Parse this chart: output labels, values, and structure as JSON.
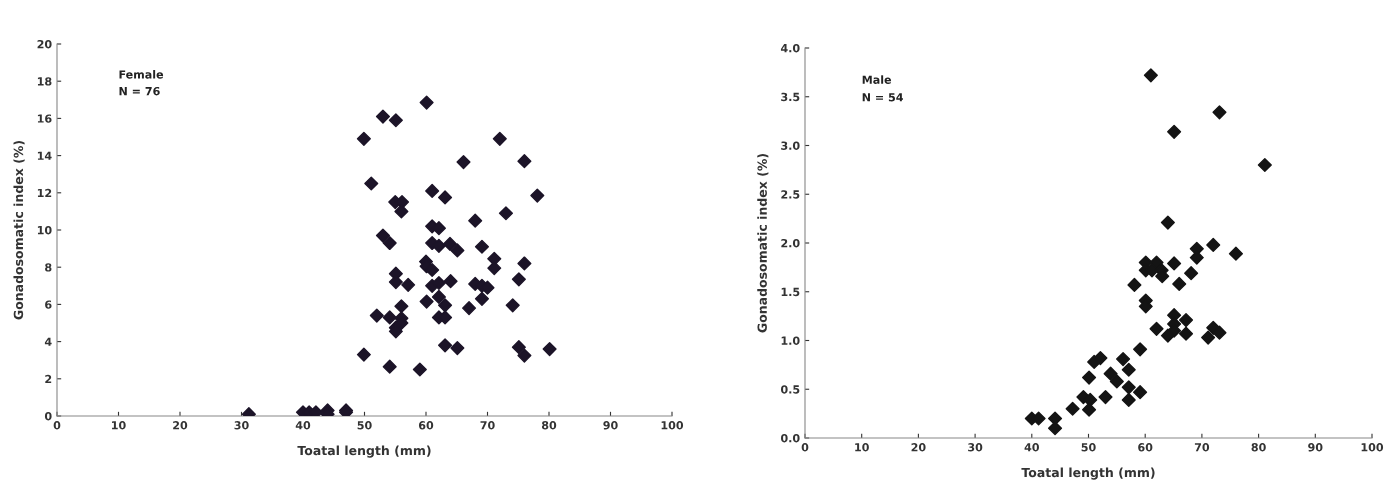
{
  "chart_data": [
    {
      "type": "scatter",
      "xlabel": "Toatal length (mm)",
      "ylabel": "Gonadosomatic index (%)",
      "annotations": [
        "Female",
        "N = 76"
      ],
      "marker": "diamond",
      "grid": false,
      "legend": false,
      "xlim": [
        0,
        100
      ],
      "xticks": [
        0,
        10,
        20,
        30,
        40,
        50,
        60,
        70,
        80,
        90,
        100
      ],
      "ylim": [
        0,
        20
      ],
      "yticks": [
        0,
        2,
        4,
        6,
        8,
        10,
        12,
        14,
        16,
        18,
        20
      ],
      "series": [
        {
          "color": "#1c1428",
          "x": [
            31.2,
            40.0,
            41.0,
            42.1,
            44.0,
            44.0,
            47.0,
            47.0,
            60.1,
            53.0,
            55.1,
            49.9,
            72.0,
            66.1,
            76.0,
            51.1,
            61.0,
            63.1,
            78.1,
            55.0,
            56.1,
            56.0,
            73.0,
            68.0,
            61.0,
            62.1,
            53.0,
            54.1,
            61.0,
            62.1,
            63.9,
            65.1,
            69.1,
            71.1,
            71.1,
            76.0,
            60.0,
            60.1,
            61.0,
            55.1,
            55.1,
            57.1,
            61.0,
            62.1,
            64.0,
            68.0,
            69.1,
            70.0,
            75.1,
            62.1,
            60.1,
            69.1,
            63.1,
            56.0,
            67.0,
            74.1,
            52.0,
            54.1,
            56.0,
            56.0,
            62.1,
            63.1,
            55.1,
            55.1,
            63.1,
            65.1,
            75.1,
            76.0,
            80.1,
            49.9,
            54.1,
            59.0
          ],
          "values": [
            0.1,
            0.2,
            0.2,
            0.2,
            0.3,
            0.1,
            0.3,
            0.2,
            16.85,
            16.1,
            15.9,
            14.9,
            14.9,
            13.65,
            13.7,
            12.5,
            12.1,
            11.75,
            11.85,
            11.5,
            11.5,
            11.0,
            10.9,
            10.5,
            10.2,
            10.1,
            9.7,
            9.3,
            9.3,
            9.15,
            9.25,
            8.9,
            9.1,
            8.45,
            7.95,
            8.2,
            8.3,
            8.05,
            7.85,
            7.65,
            7.2,
            7.05,
            7.0,
            7.15,
            7.25,
            7.1,
            7.0,
            6.9,
            7.35,
            6.4,
            6.15,
            6.3,
            5.95,
            5.9,
            5.8,
            5.95,
            5.4,
            5.3,
            5.25,
            5.0,
            5.3,
            5.3,
            4.75,
            4.55,
            3.8,
            3.65,
            3.7,
            3.25,
            3.6,
            3.3,
            2.65,
            2.5
          ]
        }
      ]
    },
    {
      "type": "scatter",
      "xlabel": "Toatal length (mm)",
      "ylabel": "Gonadosomatic index (%)",
      "annotations": [
        "Male",
        "N = 54"
      ],
      "marker": "diamond",
      "grid": false,
      "legend": false,
      "xlim": [
        0,
        100
      ],
      "xticks": [
        0,
        10,
        20,
        30,
        40,
        50,
        60,
        70,
        80,
        90,
        100
      ],
      "ylim": [
        0,
        4
      ],
      "yticks": [
        {
          "value": 0,
          "label": "0.0"
        },
        0.5,
        {
          "value": 1,
          "label": "1.0"
        },
        1.5,
        {
          "value": 2,
          "label": "2.0"
        },
        2.5,
        {
          "value": 3,
          "label": "3.0"
        },
        3.5,
        {
          "value": 4,
          "label": "4.0"
        }
      ],
      "series": [
        {
          "color": "#141414",
          "x": [
            61.0,
            73.1,
            65.1,
            81.1,
            64.0,
            72.0,
            69.1,
            69.1,
            76.0,
            60.1,
            62.0,
            65.1,
            60.1,
            61.2,
            62.9,
            63.0,
            68.1,
            66.0,
            58.1,
            60.1,
            60.1,
            65.1,
            67.2,
            65.1,
            67.2,
            65.1,
            64.0,
            62.0,
            72.0,
            73.1,
            71.1,
            59.1,
            51.0,
            52.1,
            56.1,
            50.1,
            57.1,
            53.9,
            55.0,
            57.1,
            59.1,
            57.1,
            53.0,
            49.1,
            50.3,
            50.1,
            47.2,
            40.0,
            41.2,
            44.1,
            44.1
          ],
          "values": [
            3.72,
            3.34,
            3.14,
            2.8,
            2.21,
            1.98,
            1.94,
            1.85,
            1.89,
            1.8,
            1.8,
            1.79,
            1.72,
            1.72,
            1.72,
            1.66,
            1.69,
            1.58,
            1.57,
            1.41,
            1.35,
            1.26,
            1.21,
            1.17,
            1.07,
            1.1,
            1.05,
            1.12,
            1.13,
            1.08,
            1.03,
            0.91,
            0.78,
            0.82,
            0.81,
            0.62,
            0.7,
            0.66,
            0.58,
            0.52,
            0.47,
            0.39,
            0.42,
            0.42,
            0.39,
            0.29,
            0.3,
            0.2,
            0.2,
            0.2,
            0.1
          ]
        }
      ]
    }
  ]
}
